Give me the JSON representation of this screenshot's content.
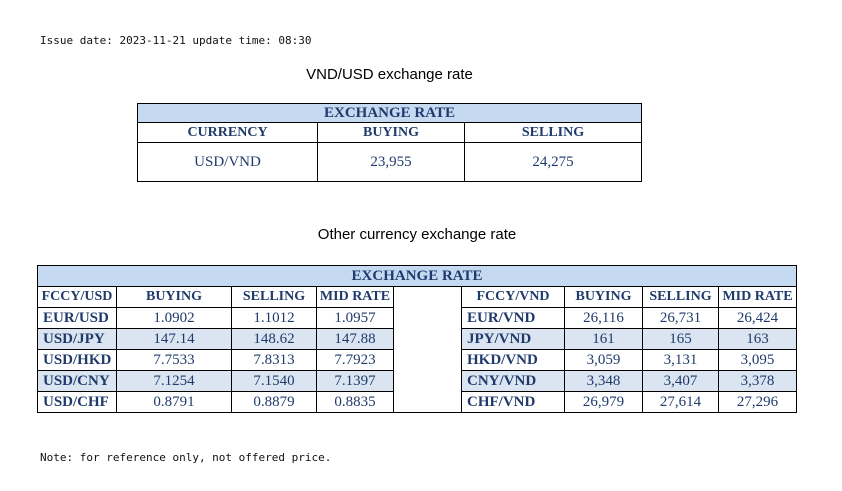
{
  "issue_line": "Issue date: 2023-11-21 update time: 08:30",
  "note": "Note: for reference only, not offered price.",
  "vnd_section": {
    "title": "VND/USD exchange rate",
    "band": "EXCHANGE RATE",
    "headers": [
      "CURRENCY",
      "BUYING",
      "SELLING"
    ],
    "row": [
      "USD/VND",
      "23,955",
      "24,275"
    ]
  },
  "other_section": {
    "title": "Other currency exchange rate",
    "band": "EXCHANGE  RATE",
    "left_headers": [
      "FCCY/USD",
      "BUYING",
      "SELLING",
      "MID RATE"
    ],
    "right_headers": [
      "FCCY/VND",
      "BUYING",
      "SELLING",
      "MID RATE"
    ],
    "left_rows": [
      [
        "EUR/USD",
        "1.0902",
        "1.1012",
        "1.0957"
      ],
      [
        "USD/JPY",
        "147.14",
        "148.62",
        "147.88"
      ],
      [
        "USD/HKD",
        "7.7533",
        "7.8313",
        "7.7923"
      ],
      [
        "USD/CNY",
        "7.1254",
        "7.1540",
        "7.1397"
      ],
      [
        "USD/CHF",
        "0.8791",
        "0.8879",
        "0.8835"
      ]
    ],
    "right_rows": [
      [
        "EUR/VND",
        "26,116",
        "26,731",
        "26,424"
      ],
      [
        "JPY/VND",
        "161",
        "165",
        "163"
      ],
      [
        "HKD/VND",
        "3,059",
        "3,131",
        "3,095"
      ],
      [
        "CNY/VND",
        "3,348",
        "3,407",
        "3,378"
      ],
      [
        "CHF/VND",
        "26,979",
        "27,614",
        "27,296"
      ]
    ]
  },
  "colors": {
    "band": "#c5d9f1",
    "alt_row": "#dbe5f1",
    "text": "#1f3a6b"
  }
}
